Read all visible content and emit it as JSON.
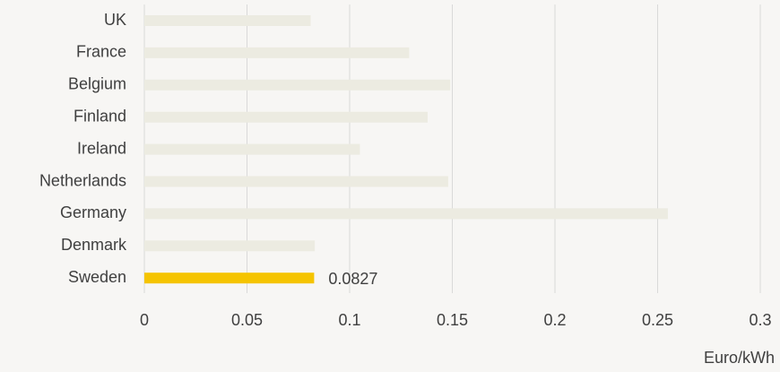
{
  "chart_data": {
    "type": "bar",
    "orientation": "horizontal",
    "categories": [
      "UK",
      "France",
      "Belgium",
      "Finland",
      "Ireland",
      "Netherlands",
      "Germany",
      "Denmark",
      "Sweden"
    ],
    "values": [
      0.081,
      0.129,
      0.149,
      0.138,
      0.105,
      0.148,
      0.255,
      0.083,
      0.0827
    ],
    "value_labels": [
      null,
      null,
      null,
      null,
      null,
      null,
      null,
      null,
      "0.0827"
    ],
    "colors": [
      "#ecebe1",
      "#ecebe1",
      "#ecebe1",
      "#ecebe1",
      "#ecebe1",
      "#ecebe1",
      "#ecebe1",
      "#ecebe1",
      "#f5c400"
    ],
    "xlim": [
      0,
      0.3
    ],
    "xticks": [
      0,
      0.05,
      0.1,
      0.15,
      0.2,
      0.25,
      0.3
    ],
    "x_label": "Euro/kWh",
    "grid": true
  }
}
